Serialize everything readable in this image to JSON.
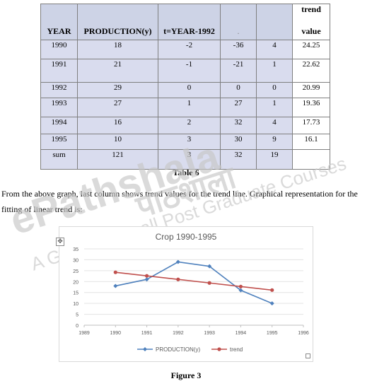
{
  "table": {
    "headers": [
      "YEAR",
      "PRODUCTION(y)",
      "t=YEAR-1992",
      ".",
      "",
      "trend value"
    ],
    "header_trend": [
      "trend",
      "value"
    ],
    "rows": [
      [
        "1990",
        "18",
        "-2",
        "-36",
        "4",
        "24.25"
      ],
      [
        "1991",
        "21",
        "-1",
        "-21",
        "1",
        "22.62"
      ],
      [
        "1992",
        "29",
        "0",
        "0",
        "0",
        "20.99"
      ],
      [
        "1993",
        "27",
        "1",
        "27",
        "1",
        "19.36"
      ],
      [
        "1994",
        "16",
        "2",
        "32",
        "4",
        "17.73"
      ],
      [
        "1995",
        "10",
        "3",
        "30",
        "9",
        "16.1"
      ],
      [
        "sum",
        "121",
        "3",
        "32",
        "19",
        ""
      ]
    ],
    "caption": "Table 6"
  },
  "paragraph": "From the above graph, last column shows trend values for the trend line. Graphical representation for the fitting of linear trend is:",
  "figure_caption": "Figure 3",
  "watermark": {
    "logo": "ePathshala",
    "hindi": "पाठशाला",
    "tagline": "A Gateway to all Post Graduate Courses"
  },
  "chart_data": {
    "type": "line",
    "title": "Crop 1990-1995",
    "x": [
      1990,
      1991,
      1992,
      1993,
      1994,
      1995
    ],
    "xlim": [
      1989,
      1996
    ],
    "xticks": [
      1989,
      1990,
      1991,
      1992,
      1993,
      1994,
      1995,
      1996
    ],
    "ylim": [
      0,
      35
    ],
    "yticks": [
      0,
      5,
      10,
      15,
      20,
      25,
      30,
      35
    ],
    "grid": true,
    "legend": "bottom",
    "series": [
      {
        "name": "PRODUCTION(y)",
        "values": [
          18,
          21,
          29,
          27,
          16,
          10
        ],
        "color": "#4f81bd",
        "marker": "diamond"
      },
      {
        "name": "trend",
        "values": [
          24.25,
          22.62,
          20.99,
          19.36,
          17.73,
          16.1
        ],
        "color": "#c0504d",
        "marker": "circle"
      }
    ]
  }
}
